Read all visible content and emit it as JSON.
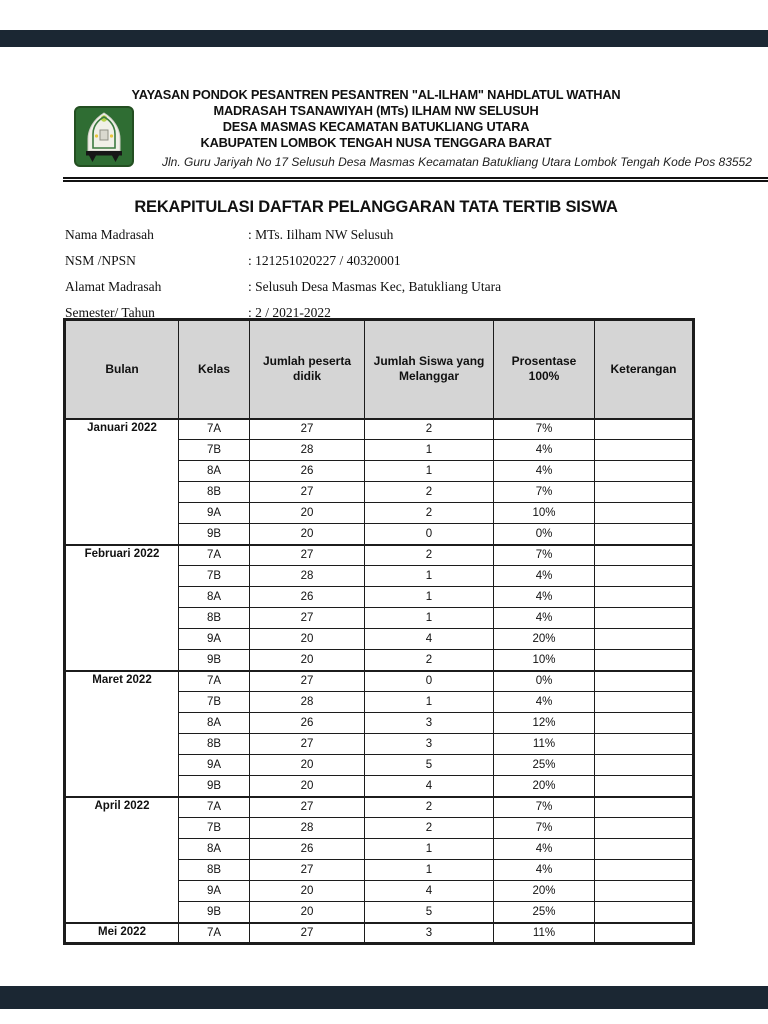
{
  "colors": {
    "page_background": "#ffffff",
    "page_gap": "#1b2733",
    "table_header_bg": "#d5d5d5",
    "logo_green": "#2f6d33"
  },
  "letterhead": {
    "logo_icon": "pesantren-green-emblem",
    "org_lines": [
      "YAYASAN PONDOK PESANTREN PESANTREN \"AL-ILHAM\" NAHDLATUL WATHAN",
      "MADRASAH TSANAWIYAH (MTs) ILHAM NW SELUSUH",
      "DESA MASMAS KECAMATAN BATUKLIANG UTARA",
      "KABUPATEN LOMBOK TENGAH NUSA TENGGARA BARAT"
    ],
    "address": "Jln. Guru Jariyah No 17 Selusuh Desa Masmas Kecamatan Batukliang Utara Lombok Tengah Kode Pos 83552"
  },
  "document": {
    "title": "REKAPITULASI DAFTAR PELANGGARAN TATA TERTIB SISWA",
    "meta": [
      {
        "label": "Nama Madrasah",
        "value": ": MTs. Iilham NW Selusuh"
      },
      {
        "label": "NSM /NPSN",
        "value": ": 121251020227 / 40320001"
      },
      {
        "label": "Alamat Madrasah",
        "value": ": Selusuh Desa Masmas Kec, Batukliang Utara"
      },
      {
        "label": "Semester/ Tahun",
        "value": ": 2 / 2021-2022"
      }
    ]
  },
  "table": {
    "headers": [
      "Bulan",
      "Kelas",
      "Jumlah peserta didik",
      "Jumlah Siswa yang Melanggar",
      "Prosentase 100%",
      "Keterangan"
    ],
    "months": [
      {
        "name": "Januari 2022",
        "rows": [
          [
            "7A",
            "27",
            "2",
            "7%",
            ""
          ],
          [
            "7B",
            "28",
            "1",
            "4%",
            ""
          ],
          [
            "8A",
            "26",
            "1",
            "4%",
            ""
          ],
          [
            "8B",
            "27",
            "2",
            "7%",
            ""
          ],
          [
            "9A",
            "20",
            "2",
            "10%",
            ""
          ],
          [
            "9B",
            "20",
            "0",
            "0%",
            ""
          ]
        ]
      },
      {
        "name": "Februari 2022",
        "rows": [
          [
            "7A",
            "27",
            "2",
            "7%",
            ""
          ],
          [
            "7B",
            "28",
            "1",
            "4%",
            ""
          ],
          [
            "8A",
            "26",
            "1",
            "4%",
            ""
          ],
          [
            "8B",
            "27",
            "1",
            "4%",
            ""
          ],
          [
            "9A",
            "20",
            "4",
            "20%",
            ""
          ],
          [
            "9B",
            "20",
            "2",
            "10%",
            ""
          ]
        ]
      },
      {
        "name": "Maret 2022",
        "rows": [
          [
            "7A",
            "27",
            "0",
            "0%",
            ""
          ],
          [
            "7B",
            "28",
            "1",
            "4%",
            ""
          ],
          [
            "8A",
            "26",
            "3",
            "12%",
            ""
          ],
          [
            "8B",
            "27",
            "3",
            "11%",
            ""
          ],
          [
            "9A",
            "20",
            "5",
            "25%",
            ""
          ],
          [
            "9B",
            "20",
            "4",
            "20%",
            ""
          ]
        ]
      },
      {
        "name": "April 2022",
        "rows": [
          [
            "7A",
            "27",
            "2",
            "7%",
            ""
          ],
          [
            "7B",
            "28",
            "2",
            "7%",
            ""
          ],
          [
            "8A",
            "26",
            "1",
            "4%",
            ""
          ],
          [
            "8B",
            "27",
            "1",
            "4%",
            ""
          ],
          [
            "9A",
            "20",
            "4",
            "20%",
            ""
          ],
          [
            "9B",
            "20",
            "5",
            "25%",
            ""
          ]
        ]
      },
      {
        "name": "Mei 2022",
        "rows": [
          [
            "7A",
            "27",
            "3",
            "11%",
            ""
          ]
        ]
      }
    ]
  }
}
